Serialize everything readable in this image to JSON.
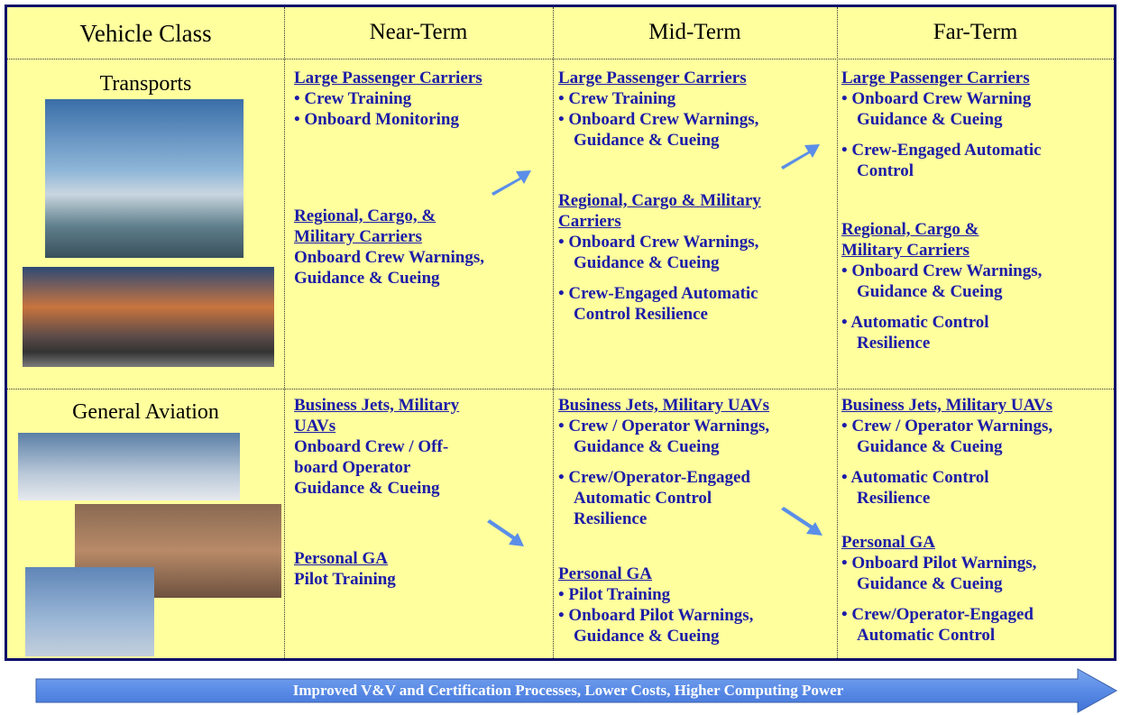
{
  "header": [
    "Vehicle Class",
    "Near-Term",
    "Mid-Term",
    "Far-Term"
  ],
  "rows": [
    {
      "label": "Transports",
      "cells": [
        [
          {
            "heading": [
              "Large Passenger Carriers"
            ],
            "items": [
              [
                "• Crew Training"
              ],
              [
                "• Onboard Monitoring"
              ]
            ]
          },
          {
            "heading": [
              "Regional, Cargo, &",
              "Military Carriers"
            ],
            "items": [
              [
                "Onboard Crew Warnings,",
                "Guidance & Cueing"
              ]
            ]
          }
        ],
        [
          {
            "heading": [
              "Large Passenger Carriers"
            ],
            "items": [
              [
                "• Crew Training"
              ],
              [
                "• Onboard Crew Warnings,",
                "Guidance & Cueing"
              ]
            ]
          },
          {
            "heading": [
              "Regional, Cargo & Military",
              "Carriers"
            ],
            "items": [
              [
                "• Onboard Crew Warnings,",
                "Guidance & Cueing"
              ],
              [
                "• Crew-Engaged Automatic",
                "Control Resilience"
              ]
            ]
          }
        ],
        [
          {
            "heading": [
              "Large Passenger Carriers"
            ],
            "items": [
              [
                "• Onboard Crew Warning",
                "Guidance & Cueing"
              ],
              [
                "• Crew-Engaged Automatic",
                "Control"
              ]
            ]
          },
          {
            "heading": [
              "Regional, Cargo &",
              "Military Carriers"
            ],
            "items": [
              [
                "• Onboard Crew Warnings,",
                "Guidance & Cueing"
              ],
              [
                "• Automatic Control",
                "Resilience"
              ]
            ]
          }
        ]
      ]
    },
    {
      "label": "General Aviation",
      "cells": [
        [
          {
            "heading": [
              "Business Jets, Military",
              "UAVs"
            ],
            "items": [
              [
                "Onboard Crew / Off-",
                "board Operator",
                "Guidance & Cueing"
              ]
            ]
          },
          {
            "heading": [
              "Personal GA"
            ],
            "items": [
              [
                "Pilot Training"
              ]
            ]
          }
        ],
        [
          {
            "heading": [
              "Business Jets, Military UAVs"
            ],
            "items": [
              [
                "•  Crew / Operator Warnings,",
                "Guidance & Cueing"
              ],
              [
                "• Crew/Operator-Engaged",
                "Automatic Control",
                "Resilience"
              ]
            ]
          },
          {
            "heading": [
              "Personal GA"
            ],
            "items": [
              [
                "• Pilot Training"
              ],
              [
                "• Onboard Pilot Warnings,",
                "Guidance & Cueing"
              ]
            ]
          }
        ],
        [
          {
            "heading": [
              "Business Jets, Military UAVs"
            ],
            "items": [
              [
                "• Crew / Operator Warnings,",
                "Guidance & Cueing"
              ],
              [
                "• Automatic Control",
                "Resilience"
              ]
            ]
          },
          {
            "heading": [
              "Personal GA"
            ],
            "items": [
              [
                "• Onboard Pilot Warnings,",
                "Guidance & Cueing"
              ],
              [
                "• Crew/Operator-Engaged",
                "Automatic  Control"
              ]
            ]
          }
        ]
      ]
    }
  ],
  "footer": "Improved V&V and Certification Processes, Lower Costs, Higher Computing Power"
}
